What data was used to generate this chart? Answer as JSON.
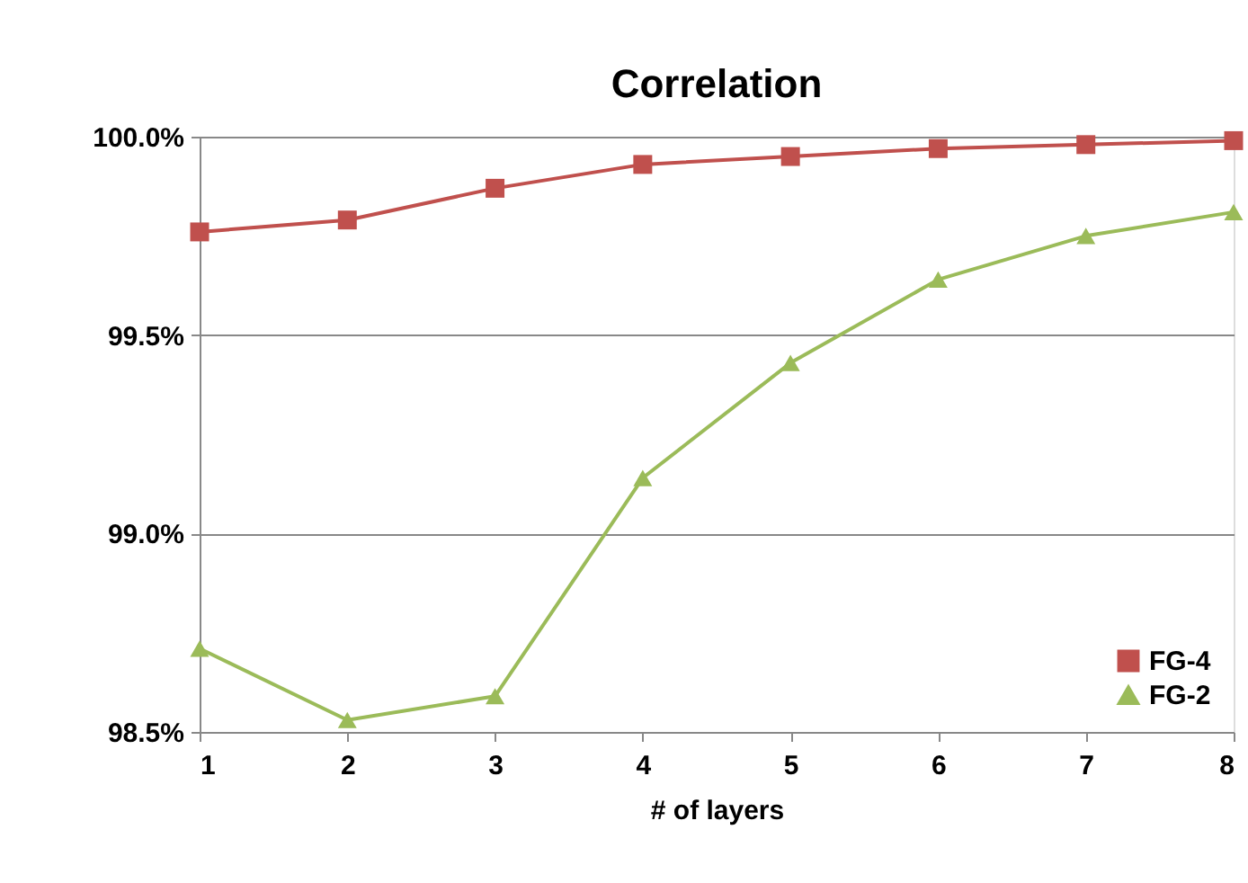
{
  "chart_data": {
    "type": "line",
    "title": "Correlation",
    "xlabel": "# of layers",
    "x": [
      1,
      2,
      3,
      4,
      5,
      6,
      7,
      8
    ],
    "xlim": [
      1,
      8
    ],
    "xticks": [
      1,
      2,
      3,
      4,
      5,
      6,
      7,
      8
    ],
    "ylim": [
      98.5,
      100
    ],
    "yticks": [
      {
        "value": 98.5,
        "label": "98.5%"
      },
      {
        "value": 99,
        "label": "99.0%"
      },
      {
        "value": 99.5,
        "label": "99.5%"
      },
      {
        "value": 100,
        "label": "100.0%"
      }
    ],
    "grid": "y",
    "legend": "bottom right",
    "series": [
      {
        "name": "FG-4",
        "color": "#c0504d",
        "marker": "square",
        "values": [
          99.76,
          99.79,
          99.87,
          99.93,
          99.95,
          99.97,
          99.98,
          99.99
        ]
      },
      {
        "name": "FG-2",
        "color": "#9bbb59",
        "marker": "triangle",
        "values": [
          98.71,
          98.53,
          98.59,
          99.14,
          99.43,
          99.64,
          99.75,
          99.81
        ]
      }
    ]
  }
}
